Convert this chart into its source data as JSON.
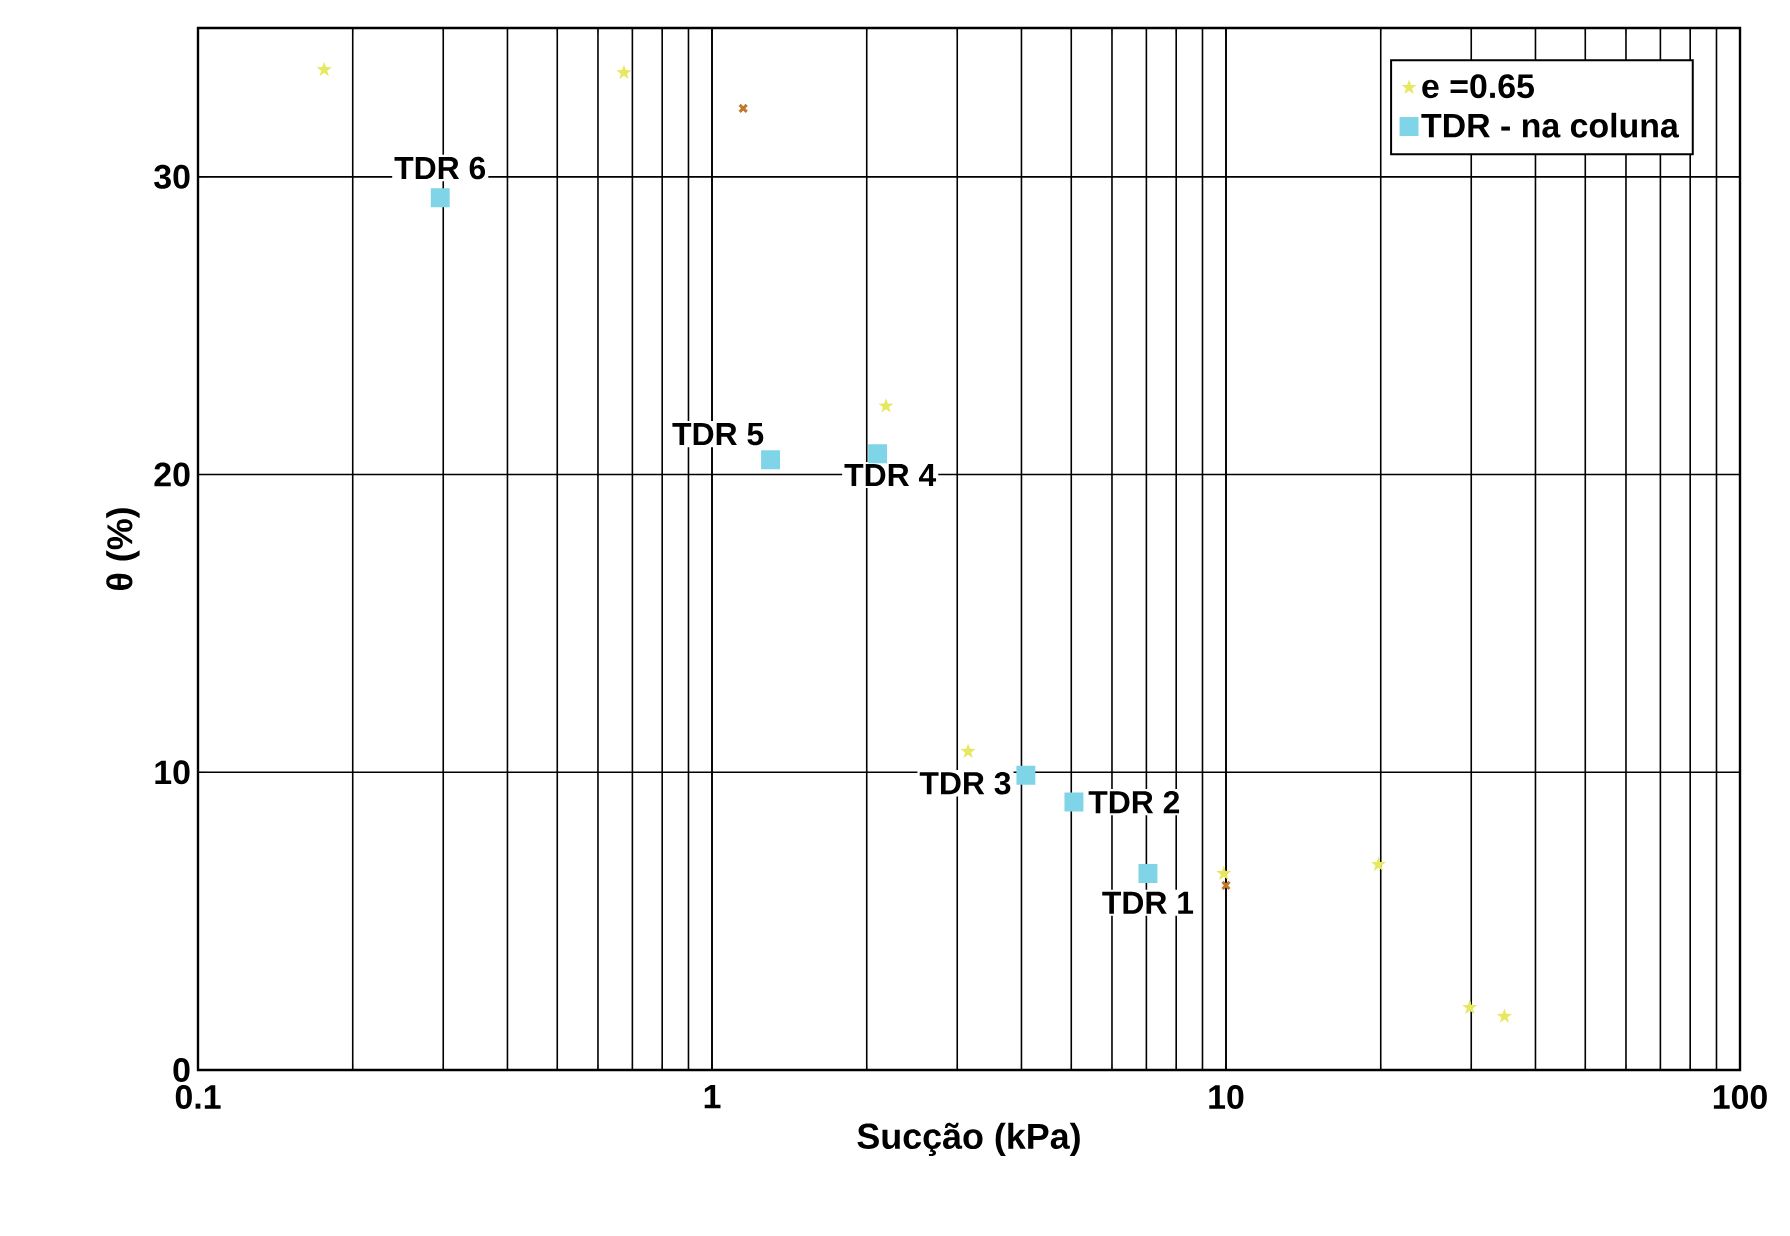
{
  "chart_data": {
    "type": "scatter",
    "xlabel": "Sucção (kPa)",
    "ylabel": "θ (%)",
    "log": "x",
    "xlim": [
      0.1,
      100
    ],
    "xticks": [
      0.1,
      1,
      10,
      100
    ],
    "ylim": [
      0,
      35
    ],
    "yticks": [
      0,
      10,
      20,
      30
    ],
    "grid": true,
    "legend": "top right",
    "series": [
      {
        "name": "e =0.65",
        "color": "#e8e860",
        "marker": "star",
        "x": [
          0.176,
          0.674,
          2.18,
          3.15,
          9.9,
          19.8,
          29.8,
          34.8
        ],
        "values": [
          33.6,
          33.5,
          22.3,
          10.7,
          6.6,
          6.9,
          2.1,
          1.8
        ]
      },
      {
        "name": "TDR - na coluna",
        "color": "#80d4e8",
        "marker": "square",
        "x": [
          0.296,
          1.3,
          2.1,
          4.08,
          5.06,
          7.05
        ],
        "values": [
          29.3,
          20.5,
          20.7,
          9.9,
          9.0,
          6.6
        ]
      },
      {
        "color": "#c07830",
        "marker": "cross",
        "x": [
          1.15,
          10.0
        ],
        "values": [
          32.3,
          6.2
        ]
      }
    ],
    "annotations": [
      {
        "text": "TDR 6",
        "x": 0.296,
        "y": 29.3
      },
      {
        "text": "TDR 5",
        "x": 1.3,
        "y": 20.5
      },
      {
        "text": "TDR 4",
        "x": 2.1,
        "y": 20.7
      },
      {
        "text": "TDR 3",
        "x": 4.08,
        "y": 9.9
      },
      {
        "text": "TDR 2",
        "x": 5.06,
        "y": 9.0
      },
      {
        "text": "TDR 1",
        "x": 7.05,
        "y": 6.6
      }
    ]
  }
}
